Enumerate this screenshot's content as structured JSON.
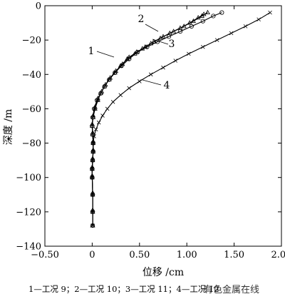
{
  "chart_data": {
    "type": "line",
    "xlabel": "位移 /cm",
    "ylabel": "深度 /m",
    "xlim": [
      -0.5,
      2.0
    ],
    "ylim": [
      -140,
      0
    ],
    "xticks": [
      "−0.50",
      "0",
      "0.50",
      "1.00",
      "1.50",
      "2.00"
    ],
    "xtick_values": [
      -0.5,
      0,
      0.5,
      1.0,
      1.5,
      2.0
    ],
    "yticks": [
      "0",
      "−20",
      "−40",
      "−60",
      "−80",
      "−100",
      "−120",
      "−140"
    ],
    "ytick_values": [
      0,
      -20,
      -40,
      -60,
      -80,
      -100,
      -120,
      -140
    ],
    "grid": false,
    "series": [
      {
        "name": "1",
        "marker": "triangle",
        "x": [
          1.18,
          1.12,
          1.03,
          0.93,
          0.82,
          0.72,
          0.62,
          0.53,
          0.45,
          0.37,
          0.3,
          0.24,
          0.18,
          0.13,
          0.09,
          0.06,
          0.03,
          0.01,
          0,
          0.005,
          0.01,
          0.01,
          0.005,
          0,
          0,
          0.005,
          0.005,
          0.005
        ],
        "y": [
          -5,
          -7,
          -10,
          -13,
          -16,
          -19,
          -22,
          -25,
          -28,
          -31,
          -35,
          -39,
          -43,
          -47,
          -51,
          -55,
          -60,
          -65,
          -70,
          -75,
          -80,
          -85,
          -90,
          -95,
          -100,
          -110,
          -120,
          -128
        ]
      },
      {
        "name": "2",
        "marker": "triangle",
        "x": [
          1.22,
          1.16,
          1.07,
          0.97,
          0.86,
          0.75,
          0.65,
          0.56,
          0.47,
          0.39,
          0.32,
          0.25,
          0.19,
          0.14,
          0.1,
          0.06,
          0.03,
          0.01,
          0,
          0.005,
          0.01,
          0.01,
          0.005,
          0,
          0,
          0.005,
          0.005,
          0.005
        ],
        "y": [
          -4,
          -6,
          -9,
          -12,
          -15,
          -18,
          -21,
          -24,
          -27,
          -30,
          -34,
          -38,
          -42,
          -46,
          -50,
          -54,
          -59,
          -64,
          -69,
          -74,
          -79,
          -84,
          -89,
          -94,
          -99,
          -109,
          -119,
          -128
        ]
      },
      {
        "name": "3",
        "marker": "circle",
        "x": [
          1.37,
          1.28,
          1.17,
          1.05,
          0.93,
          0.81,
          0.69,
          0.58,
          0.48,
          0.39,
          0.31,
          0.24,
          0.18,
          0.13,
          0.09,
          0.05,
          0.02,
          0.005,
          0,
          0.005,
          0.01,
          0.01,
          0.005,
          0,
          0,
          0.005,
          0.005,
          0.005
        ],
        "y": [
          -4,
          -6,
          -9,
          -12,
          -15,
          -18,
          -21,
          -24,
          -27,
          -31,
          -35,
          -39,
          -43,
          -47,
          -51,
          -55,
          -60,
          -65,
          -70,
          -75,
          -80,
          -85,
          -90,
          -95,
          -100,
          -110,
          -120,
          -128
        ]
      },
      {
        "name": "4",
        "marker": "cross",
        "x": [
          1.88,
          1.76,
          1.62,
          1.47,
          1.32,
          1.17,
          1.02,
          0.88,
          0.75,
          0.62,
          0.5,
          0.39,
          0.3,
          0.22,
          0.16,
          0.11,
          0.07,
          0.04,
          0.02,
          0.01,
          0.01,
          0.005,
          0,
          0,
          0.005,
          0.005,
          0.005
        ],
        "y": [
          -4,
          -8,
          -12,
          -16,
          -20,
          -24,
          -28,
          -32,
          -36,
          -40,
          -44,
          -48,
          -52,
          -56,
          -60,
          -64,
          -68,
          -72,
          -76,
          -80,
          -85,
          -90,
          -95,
          -100,
          -110,
          -120,
          -128
        ]
      }
    ],
    "curve_labels": [
      "1",
      "2",
      "3",
      "4"
    ],
    "legend_caption": "1—工况 9；2—工况 10；3—工况 11；4—工况 12"
  },
  "watermark": "有色金属在线"
}
